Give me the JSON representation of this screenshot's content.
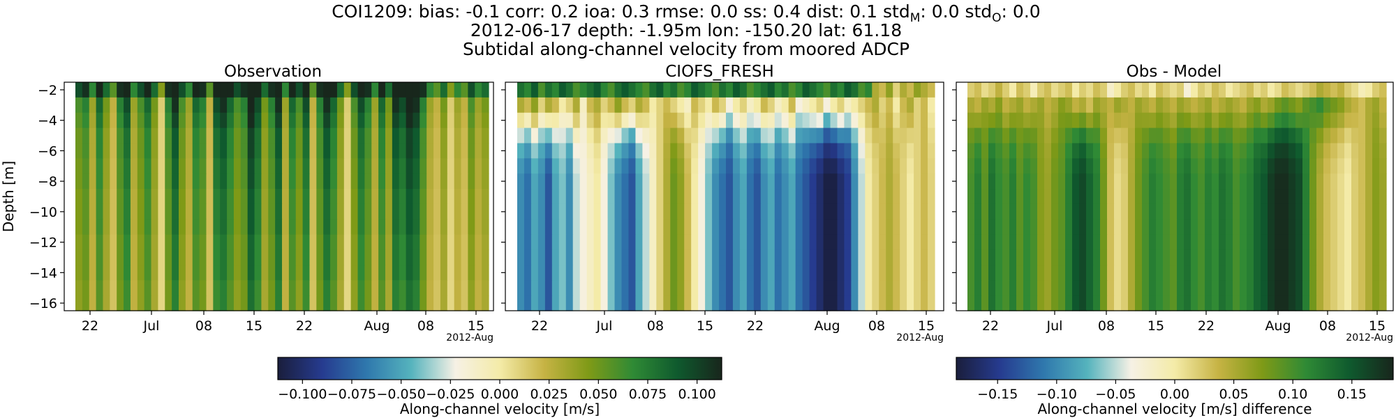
{
  "figure": {
    "title_line1": "COI1209: bias: -0.1  corr: 0.2  ioa: 0.3  rmse: 0.0  ss: 0.4  dist: 0.1  std",
    "title_line1_sub_model": "M",
    "title_line1_mid": ": 0.0  std",
    "title_line1_sub_obs": "O",
    "title_line1_end": ": 0.0",
    "title_line2": "2012-06-17 depth: -1.95m lon: -150.20 lat: 61.18",
    "title_line3": "Subtidal along-channel velocity from moored ADCP"
  },
  "colors": {
    "cmap_stops": [
      "#1a1e3c",
      "#263b8f",
      "#2f78ad",
      "#55b3bd",
      "#f6f1e5",
      "#f4eba8",
      "#c6b344",
      "#7f9a17",
      "#2f8a35",
      "#0f5a2e",
      "#18261c"
    ]
  },
  "chart_data": [
    {
      "type": "heatmap",
      "title": "Observation",
      "ylabel": "Depth [m]",
      "xlabel": "",
      "x_tick_labels": [
        "22",
        "Jul",
        "08",
        "15",
        "22",
        "Aug",
        "08",
        "15"
      ],
      "x_offset_label": "2012-Aug",
      "y_ticks": [
        -2,
        -4,
        -6,
        -8,
        -10,
        -12,
        -14,
        -16
      ],
      "y_tick_labels": [
        "−2",
        "−4",
        "−6",
        "−8",
        "−10",
        "−12",
        "−14",
        "−16"
      ],
      "ylim": [
        -16.5,
        -1.5
      ],
      "x_range": [
        "2012-06-17",
        "2012-08-17"
      ],
      "colorbar": "left",
      "depth_levels": 15,
      "time_steps": 60,
      "column_values": [
        0.05,
        0.06,
        0.03,
        0.07,
        0.04,
        0.02,
        0.06,
        0.08,
        0.03,
        0.05,
        0.07,
        0.04,
        0.01,
        0.06,
        0.09,
        0.05,
        0.03,
        0.07,
        0.06,
        0.02,
        0.08,
        0.09,
        0.07,
        0.05,
        0.06,
        0.1,
        0.08,
        0.04,
        0.06,
        0.09,
        0.03,
        0.07,
        0.05,
        0.08,
        0.02,
        0.06,
        0.09,
        0.07,
        0.04,
        0.01,
        0.05,
        0.08,
        0.06,
        0.03,
        0.07,
        0.04,
        0.09,
        0.08,
        0.1,
        0.09,
        0.06,
        0.03,
        0.02,
        0.04,
        0.01,
        0.03,
        0.02,
        0.05,
        0.03,
        0.04
      ],
      "depth_factor": [
        1.3,
        1.2,
        1.1,
        1,
        1,
        0.95,
        0.95,
        0.9,
        0.9,
        0.9,
        0.85,
        0.85,
        0.85,
        0.8,
        0.8
      ]
    },
    {
      "type": "heatmap",
      "title": "CIOFS_FRESH",
      "x_tick_labels": [
        "22",
        "Jul",
        "08",
        "15",
        "22",
        "Aug",
        "08",
        "15"
      ],
      "x_offset_label": "2012-Aug",
      "ylim": [
        -16.5,
        -1.5
      ],
      "x_range": [
        "2012-06-17",
        "2012-08-17"
      ],
      "colorbar": "left",
      "depth_levels": 15,
      "surface_values": [
        0.08,
        0.07,
        0.09,
        0.06,
        0.08,
        0.07,
        0.09,
        0.08,
        0.06,
        0.07,
        0.08,
        0.09,
        0.07,
        0.06,
        0.08,
        0.09,
        0.08,
        0.07,
        0.06,
        0.08,
        0.09,
        0.07,
        0.08,
        0.06,
        0.07,
        0.09,
        0.08,
        0.07,
        0.06,
        0.08,
        0.07,
        0.09,
        0.08,
        0.06,
        0.07,
        0.08,
        0.09,
        0.07,
        0.08,
        0.06,
        0.07,
        0.09,
        0.08,
        0.07,
        0.06,
        0.08,
        0.07,
        0.09,
        0.08,
        0.06,
        0.07,
        0.03,
        0.02,
        0.04,
        0.01,
        0.03,
        0.02,
        0.04,
        0.03,
        0.02
      ],
      "layer2_values": [
        0.03,
        0.02,
        0.04,
        0.01,
        0.03,
        0.02,
        0.0,
        0.01,
        0.03,
        -0.01,
        0.02,
        0.03,
        0.01,
        0.02,
        0.04,
        0.02,
        0.01,
        0.03,
        0.02,
        0.0,
        0.01,
        0.02,
        0.01,
        0.0,
        -0.01,
        0.02,
        0.01,
        0.0,
        0.02,
        0.01,
        -0.02,
        0.0,
        0.01,
        -0.01,
        0.0,
        0.02,
        0.01,
        -0.01,
        0.0,
        0.02,
        -0.02,
        -0.01,
        0.0,
        0.01,
        -0.02,
        0.0,
        0.01,
        -0.01,
        0.0,
        0.01,
        0.02,
        0.03,
        0.01,
        0.02,
        0.0,
        0.02,
        0.03,
        0.01,
        0.02,
        0.0
      ],
      "deep_values": [
        -0.06,
        -0.07,
        -0.05,
        -0.06,
        -0.08,
        -0.05,
        -0.04,
        -0.06,
        -0.03,
        -0.02,
        -0.01,
        0.0,
        -0.02,
        -0.04,
        -0.06,
        -0.07,
        -0.08,
        -0.05,
        -0.03,
        -0.01,
        0.01,
        0.03,
        0.05,
        0.04,
        0.02,
        0.0,
        -0.02,
        -0.04,
        -0.06,
        -0.07,
        -0.08,
        -0.06,
        -0.05,
        -0.07,
        -0.08,
        -0.06,
        -0.05,
        -0.07,
        -0.06,
        -0.05,
        -0.07,
        -0.08,
        -0.09,
        -0.1,
        -0.11,
        -0.11,
        -0.1,
        -0.09,
        -0.06,
        -0.03,
        0.0,
        0.01,
        0.02,
        0.03,
        0.02,
        0.01,
        0.0,
        0.01,
        0.02,
        0.01
      ],
      "deep_ramp": [
        0.3,
        0.65,
        0.85,
        0.95,
        1,
        1,
        1,
        1,
        1,
        1,
        1,
        1,
        1,
        1
      ]
    },
    {
      "type": "heatmap",
      "title": "Obs - Model",
      "x_tick_labels": [
        "22",
        "Jul",
        "08",
        "15",
        "22",
        "Aug",
        "08",
        "15"
      ],
      "x_offset_label": "2012-Aug",
      "ylim": [
        -16.5,
        -1.5
      ],
      "x_range": [
        "2012-06-17",
        "2012-08-17"
      ],
      "colorbar": "right",
      "depth_levels": 15,
      "surface_values": [
        0.02,
        0.03,
        0.01,
        0.02,
        0.04,
        0.02,
        0.0,
        0.03,
        0.02,
        -0.01,
        0.02,
        0.03,
        0.01,
        0.02,
        0.03,
        0.0,
        0.02,
        0.01,
        0.03,
        0.02,
        -0.02,
        0.0,
        0.02,
        0.03,
        0.01,
        0.02,
        0.0,
        0.03,
        0.02,
        0.01,
        0.02,
        -0.03,
        0.0,
        0.02,
        0.01,
        0.03,
        0.02,
        0.0,
        0.01,
        0.02,
        0.03,
        0.01,
        0.02,
        0.0,
        0.01,
        0.03,
        0.02,
        0.01,
        0.02,
        0.03,
        0.05,
        0.04,
        0.03,
        0.04,
        0.02,
        0.01,
        -0.01,
        0.0,
        0.02,
        0.03
      ],
      "layer2_values": [
        0.05,
        0.04,
        0.06,
        0.05,
        0.07,
        0.04,
        0.05,
        0.06,
        0.04,
        0.05,
        0.06,
        0.04,
        0.05,
        0.07,
        0.06,
        0.04,
        0.05,
        0.03,
        0.06,
        0.05,
        0.04,
        0.06,
        0.05,
        0.04,
        0.06,
        0.05,
        0.04,
        0.06,
        0.05,
        0.04,
        0.06,
        0.05,
        0.04,
        0.05,
        0.06,
        0.04,
        0.05,
        0.06,
        0.05,
        0.04,
        0.06,
        0.07,
        0.05,
        0.06,
        0.08,
        0.09,
        0.08,
        0.07,
        0.09,
        0.1,
        0.11,
        0.09,
        0.08,
        0.07,
        0.05,
        0.04,
        0.03,
        0.05,
        0.06,
        0.04
      ],
      "deep_values": [
        0.1,
        0.12,
        0.09,
        0.13,
        0.11,
        0.1,
        0.12,
        0.09,
        0.11,
        0.1,
        0.07,
        0.06,
        0.08,
        0.09,
        0.12,
        0.15,
        0.16,
        0.14,
        0.12,
        0.08,
        0.03,
        0.01,
        0.02,
        0.05,
        0.08,
        0.1,
        0.12,
        0.11,
        0.1,
        0.09,
        0.12,
        0.13,
        0.11,
        0.1,
        0.12,
        0.11,
        0.13,
        0.12,
        0.1,
        0.11,
        0.12,
        0.14,
        0.15,
        0.17,
        0.18,
        0.18,
        0.17,
        0.16,
        0.12,
        0.08,
        0.05,
        0.03,
        0.02,
        0.01,
        0.0,
        0.02,
        0.03,
        0.05,
        0.07,
        0.06
      ],
      "deep_ramp": [
        0.3,
        0.65,
        0.85,
        0.95,
        1,
        1,
        1,
        1,
        1,
        1,
        1,
        1,
        1,
        1
      ]
    }
  ],
  "colorbars": [
    {
      "label": "Along-channel velocity [m/s]",
      "range": [
        -0.1125,
        0.1125
      ],
      "tick_values": [
        -0.1,
        -0.075,
        -0.05,
        -0.025,
        0,
        0.025,
        0.05,
        0.075,
        0.1
      ],
      "tick_labels": [
        "−0.100",
        "−0.075",
        "−0.050",
        "−0.025",
        "0.000",
        "0.025",
        "0.050",
        "0.075",
        "0.100"
      ]
    },
    {
      "label": "Along-channel velocity [m/s] difference",
      "range": [
        -0.185,
        0.185
      ],
      "tick_values": [
        -0.15,
        -0.1,
        -0.05,
        0,
        0.05,
        0.1,
        0.15
      ],
      "tick_labels": [
        "−0.15",
        "−0.10",
        "−0.05",
        "0.00",
        "0.05",
        "0.10",
        "0.15"
      ]
    }
  ]
}
